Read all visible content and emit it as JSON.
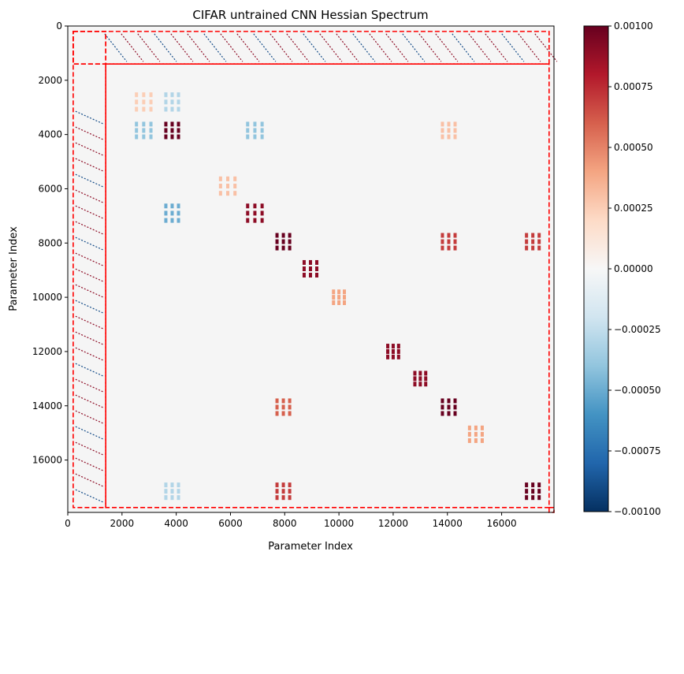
{
  "chart_data": {
    "type": "heatmap",
    "title": "CIFAR untrained CNN Hessian Spectrum",
    "xlabel": "Parameter Index",
    "ylabel": "Parameter Index",
    "xlim": [
      0,
      17930
    ],
    "ylim": [
      17930,
      0
    ],
    "x_ticks": [
      0,
      2000,
      4000,
      6000,
      8000,
      10000,
      12000,
      14000,
      16000
    ],
    "y_ticks": [
      0,
      2000,
      4000,
      6000,
      8000,
      10000,
      12000,
      14000,
      16000
    ],
    "x_tick_labels": [
      "0",
      "2000",
      "4000",
      "6000",
      "8000",
      "10000",
      "12000",
      "14000",
      "16000"
    ],
    "y_tick_labels": [
      "0",
      "2000",
      "4000",
      "6000",
      "8000",
      "10000",
      "12000",
      "14000",
      "16000"
    ],
    "colorbar": {
      "colormap": "RdBu_r",
      "vmin": -0.001,
      "vmax": 0.001,
      "ticks": [
        -0.001,
        -0.00075,
        -0.0005,
        -0.00025,
        0,
        0.00025,
        0.0005,
        0.00075,
        0.001
      ],
      "tick_labels": [
        "−0.00100",
        "−0.00075",
        "−0.00050",
        "−0.00025",
        "0.00000",
        "0.00025",
        "0.00050",
        "0.00075",
        "0.00100"
      ]
    },
    "layer_boundaries": [
      0,
      200,
      1400,
      17750,
      17930
    ],
    "boundary_color": "#ff0000",
    "background_value": 0,
    "blocks": [
      {
        "rows": [
          2400,
          3200
        ],
        "cols": [
          2400,
          3200
        ],
        "value": 0.00025
      },
      {
        "rows": [
          2400,
          3200
        ],
        "cols": [
          3500,
          4200
        ],
        "value": -0.0003
      },
      {
        "rows": [
          3500,
          4200
        ],
        "cols": [
          2400,
          3200
        ],
        "value": -0.0004
      },
      {
        "rows": [
          3500,
          4200
        ],
        "cols": [
          3500,
          4200
        ],
        "value": 0.001
      },
      {
        "rows": [
          3500,
          4200
        ],
        "cols": [
          6500,
          7300
        ],
        "value": -0.0004
      },
      {
        "rows": [
          5500,
          6300
        ],
        "cols": [
          5500,
          6300
        ],
        "value": 0.0003
      },
      {
        "rows": [
          6500,
          7300
        ],
        "cols": [
          3500,
          4200
        ],
        "value": -0.0005
      },
      {
        "rows": [
          6500,
          7300
        ],
        "cols": [
          6500,
          7300
        ],
        "value": 0.0009
      },
      {
        "rows": [
          7600,
          8300
        ],
        "cols": [
          7600,
          8300
        ],
        "value": 0.001
      },
      {
        "rows": [
          8600,
          9300
        ],
        "cols": [
          8600,
          9300
        ],
        "value": 0.0009
      },
      {
        "rows": [
          9700,
          10300
        ],
        "cols": [
          9700,
          10300
        ],
        "value": 0.0004
      },
      {
        "rows": [
          11700,
          12300
        ],
        "cols": [
          11700,
          12300
        ],
        "value": 0.0009
      },
      {
        "rows": [
          12700,
          13300
        ],
        "cols": [
          12700,
          13300
        ],
        "value": 0.0009
      },
      {
        "rows": [
          13700,
          14400
        ],
        "cols": [
          13700,
          14400
        ],
        "value": 0.001
      },
      {
        "rows": [
          14700,
          15400
        ],
        "cols": [
          14700,
          15400
        ],
        "value": 0.0004
      },
      {
        "rows": [
          16800,
          17500
        ],
        "cols": [
          16800,
          17500
        ],
        "value": 0.001
      },
      {
        "rows": [
          7600,
          8300
        ],
        "cols": [
          13700,
          14400
        ],
        "value": 0.0007
      },
      {
        "rows": [
          13700,
          14400
        ],
        "cols": [
          7600,
          8300
        ],
        "value": 0.0006
      },
      {
        "rows": [
          16800,
          17500
        ],
        "cols": [
          7600,
          8300
        ],
        "value": 0.0007
      },
      {
        "rows": [
          7600,
          8300
        ],
        "cols": [
          16800,
          17500
        ],
        "value": 0.0007
      },
      {
        "rows": [
          3500,
          4200
        ],
        "cols": [
          13700,
          14400
        ],
        "value": 0.0003
      },
      {
        "rows": [
          16800,
          17500
        ],
        "cols": [
          3500,
          4200
        ],
        "value": -0.0003
      }
    ]
  }
}
